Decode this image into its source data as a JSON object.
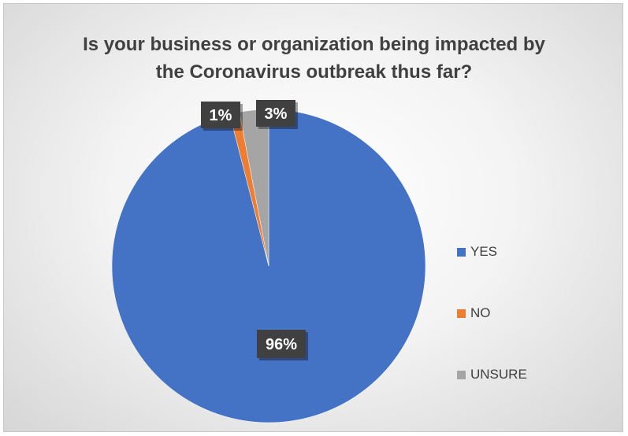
{
  "chart_data": {
    "type": "pie",
    "title_lines": [
      "Is your business or organization being impacted by",
      "the Coronavirus outbreak thus far?"
    ],
    "categories": [
      "YES",
      "NO",
      "UNSURE"
    ],
    "values": [
      96,
      1,
      3
    ],
    "data_labels": [
      "96%",
      "1%",
      "3%"
    ],
    "colors": [
      "#4472c4",
      "#ed7d31",
      "#a5a5a5"
    ],
    "legend_position": "right"
  }
}
